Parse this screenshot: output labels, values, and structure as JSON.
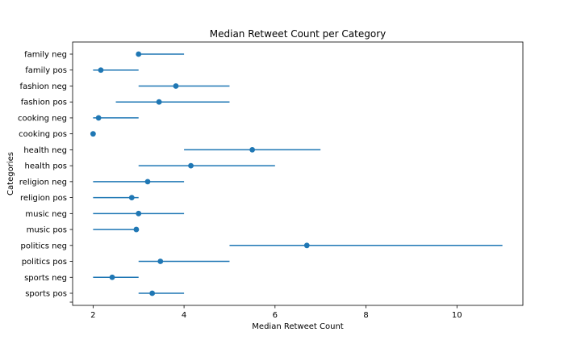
{
  "chart_data": {
    "type": "scatter",
    "title": "Median Retweet Count per Category",
    "xlabel": "Median Retweet Count",
    "ylabel": "Categories",
    "xlim": [
      1.55,
      11.45
    ],
    "xticks": [
      2,
      4,
      6,
      8,
      10
    ],
    "grid": false,
    "color": "#1f77b4",
    "categories": [
      "family neg",
      "family pos",
      "fashion neg",
      "fashion pos",
      "cooking neg",
      "cooking pos",
      "health neg",
      "health pos",
      "religion neg",
      "religion pos",
      "music neg",
      "music pos",
      "politics neg",
      "politics pos",
      "sports neg",
      "sports pos"
    ],
    "medians": [
      3.0,
      2.17,
      3.82,
      3.45,
      2.12,
      2.0,
      5.5,
      4.15,
      3.2,
      2.85,
      3.0,
      2.95,
      6.7,
      3.48,
      2.42,
      3.3
    ],
    "error_low": [
      3.0,
      2.0,
      3.0,
      2.5,
      2.0,
      2.0,
      4.0,
      3.0,
      2.0,
      2.0,
      2.0,
      2.0,
      5.0,
      3.0,
      2.0,
      3.0
    ],
    "error_high": [
      4.0,
      3.0,
      5.0,
      5.0,
      3.0,
      2.0,
      7.0,
      6.0,
      4.0,
      3.0,
      4.0,
      3.0,
      11.0,
      5.0,
      3.0,
      4.0
    ]
  }
}
